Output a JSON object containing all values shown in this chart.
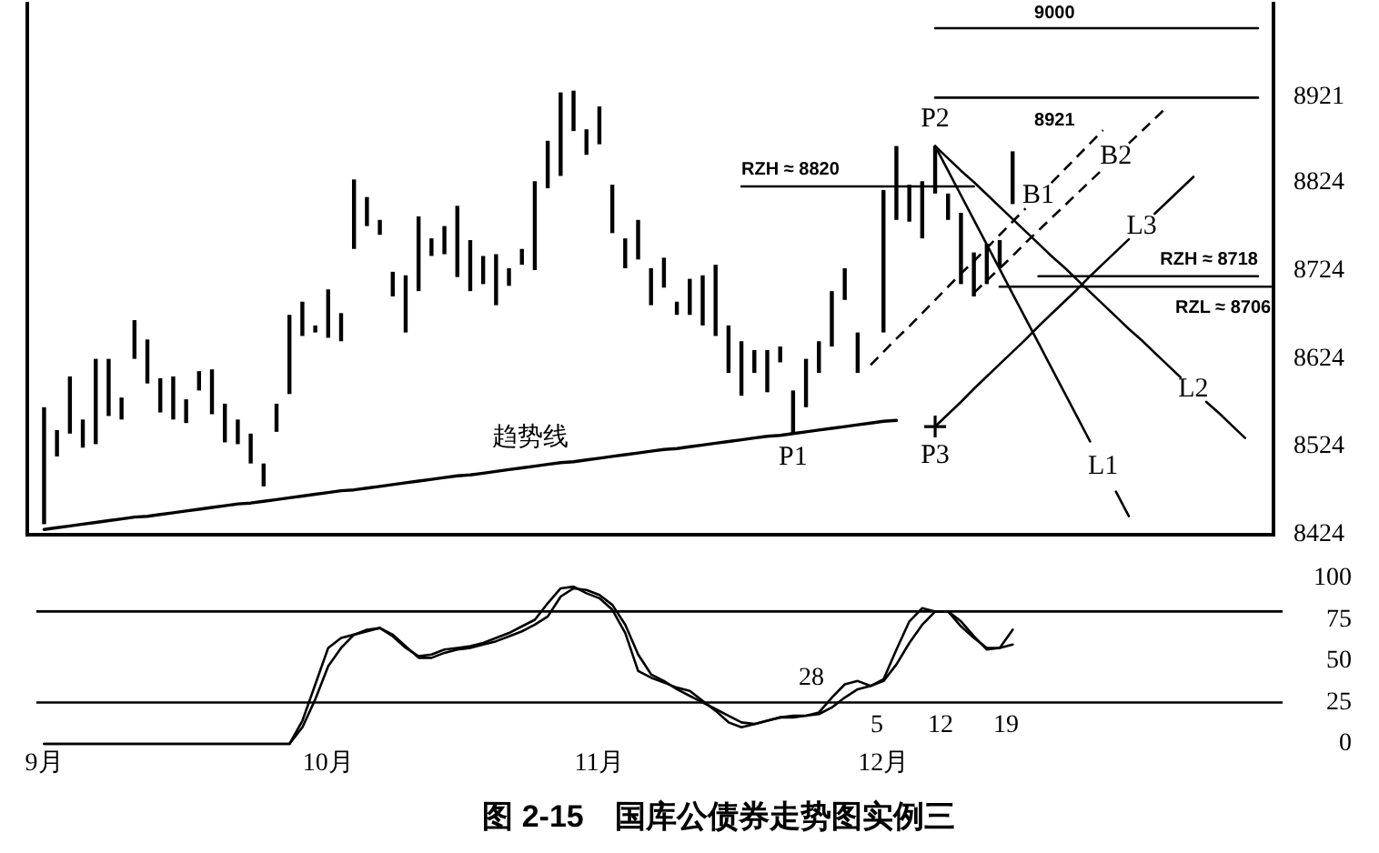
{
  "chart_data": [
    {
      "type": "bar",
      "tick_labels": "y",
      "ylim": [
        8424,
        9030
      ],
      "yticks": [
        8424,
        8524,
        8624,
        8724,
        8824,
        8921
      ],
      "categories": [
        null,
        null,
        null,
        null,
        null,
        null,
        null,
        null,
        null,
        null,
        null,
        null,
        null,
        null,
        null,
        null,
        null,
        null,
        null,
        null,
        null,
        null,
        null,
        null,
        null,
        null,
        null,
        null,
        null,
        null,
        null,
        null,
        null,
        null,
        null,
        null,
        null,
        null,
        null,
        null,
        null,
        null,
        null,
        null,
        null,
        null,
        null,
        null,
        null,
        null,
        null,
        null,
        null,
        null,
        null,
        null,
        null,
        null,
        null,
        null,
        null,
        null,
        null,
        null,
        null,
        null,
        null,
        null,
        null,
        null,
        null,
        null,
        null,
        null,
        null,
        null,
        null,
        null,
        null,
        null,
        null,
        null,
        null,
        null,
        null,
        null,
        null,
        null,
        null,
        null,
        null,
        null,
        null,
        null,
        null,
        null
      ],
      "series": [
        {
          "color": "#000000",
          "base": [
            8436,
            8513,
            8539,
            8523,
            8527,
            8559,
            8555,
            8624,
            8596,
            8563,
            8555,
            8551,
            8588,
            8561,
            8529,
            8527,
            8505,
            8479,
            8541,
            8584,
            8650,
            8654,
            8648,
            8644,
            8749,
            8775,
            8765,
            8695,
            8654,
            8701,
            8741,
            8743,
            8717,
            8701,
            8709,
            8685,
            8707,
            8731,
            8725,
            8818,
            8832,
            8883,
            8856,
            8868,
            8767,
            8727,
            8737,
            8685,
            8705,
            8674,
            8674,
            8662,
            8650,
            8608,
            8582,
            8608,
            8586,
            8620,
            8539,
            8569,
            8608,
            8638,
            8691,
            8608,
            null,
            8654,
            8782,
            8780,
            8761,
            8812,
            8782,
            8709,
            8695,
            8709,
            8729,
            8800,
            null,
            null,
            null,
            null,
            null,
            null,
            null,
            null,
            null,
            null,
            null,
            null,
            null,
            null,
            null,
            null,
            null,
            null,
            null,
            null
          ],
          "values": [
            133,
            30,
            65,
            32,
            97,
            65,
            25,
            44,
            50,
            39,
            49,
            27,
            22,
            51,
            44,
            28,
            34,
            26,
            32,
            90,
            39,
            8,
            55,
            32,
            79,
            33,
            17,
            28,
            65,
            85,
            20,
            32,
            81,
            58,
            32,
            58,
            20,
            18,
            101,
            54,
            95,
            46,
            29,
            43,
            55,
            34,
            45,
            42,
            34,
            15,
            41,
            57,
            81,
            54,
            62,
            26,
            48,
            18,
            49,
            55,
            36,
            63,
            36,
            46,
            null,
            162,
            84,
            42,
            65,
            54,
            30,
            81,
            50,
            46,
            30,
            60,
            null,
            null,
            null,
            null,
            null,
            null,
            null,
            null,
            null,
            null,
            null,
            null,
            null,
            null,
            null,
            null,
            null,
            null,
            null,
            null
          ]
        },
        {
          "type": "line",
          "name": "趋势线",
          "color": "#000000",
          "values": [
            8430,
            8432,
            8434,
            8436,
            8438,
            8440,
            8442,
            8444,
            8445,
            8447,
            8449,
            8451,
            8453,
            8455,
            8457,
            8459,
            8460,
            8462,
            8464,
            8466,
            8468,
            8470,
            8472,
            8474,
            8475,
            8477,
            8479,
            8481,
            8483,
            8485,
            8487,
            8489,
            8491,
            8492,
            8494,
            8496,
            8498,
            8500,
            8502,
            8504,
            8506,
            8507,
            8509,
            8511,
            8513,
            8515,
            8517,
            8519,
            8521,
            8522,
            8524,
            8526,
            8528,
            8530,
            8532,
            8534,
            8536,
            8537,
            8539,
            8541,
            8543,
            8545,
            8547,
            8549,
            8551,
            8553,
            8554,
            null,
            null,
            null,
            null,
            null,
            null,
            null,
            null,
            null,
            null,
            null,
            null,
            null,
            null,
            null,
            null,
            null,
            null,
            null,
            null,
            null,
            null,
            null,
            null,
            null,
            null,
            null,
            null,
            null
          ]
        },
        {
          "type": "line",
          "name": "9000",
          "color": "#000000",
          "values": [
            null,
            null,
            null,
            null,
            null,
            null,
            null,
            null,
            null,
            null,
            null,
            null,
            null,
            null,
            null,
            null,
            null,
            null,
            null,
            null,
            null,
            null,
            null,
            null,
            null,
            null,
            null,
            null,
            null,
            null,
            null,
            null,
            null,
            null,
            null,
            null,
            null,
            null,
            null,
            null,
            null,
            null,
            null,
            null,
            null,
            null,
            null,
            null,
            null,
            null,
            null,
            null,
            null,
            null,
            null,
            null,
            null,
            null,
            null,
            null,
            null,
            null,
            null,
            null,
            null,
            null,
            null,
            null,
            null,
            9000,
            9000,
            9000,
            9000,
            9000,
            9000,
            9000,
            9000,
            9000,
            9000,
            9000,
            9000,
            9000,
            9000,
            9000,
            9000,
            9000,
            9000,
            9000,
            9000,
            9000,
            9000,
            9000,
            9000,
            9000,
            9000,
            null
          ]
        },
        {
          "type": "line",
          "name": "8921",
          "color": "#000000",
          "values": [
            null,
            null,
            null,
            null,
            null,
            null,
            null,
            null,
            null,
            null,
            null,
            null,
            null,
            null,
            null,
            null,
            null,
            null,
            null,
            null,
            null,
            null,
            null,
            null,
            null,
            null,
            null,
            null,
            null,
            null,
            null,
            null,
            null,
            null,
            null,
            null,
            null,
            null,
            null,
            null,
            null,
            null,
            null,
            null,
            null,
            null,
            null,
            null,
            null,
            null,
            null,
            null,
            null,
            null,
            null,
            null,
            null,
            null,
            null,
            null,
            null,
            null,
            null,
            null,
            null,
            null,
            null,
            null,
            null,
            8921,
            8921,
            8921,
            8921,
            8921,
            8921,
            8921,
            8921,
            8921,
            8921,
            8921,
            8921,
            8921,
            8921,
            8921,
            8921,
            8921,
            8921,
            8921,
            8921,
            8921,
            8921,
            8921,
            8921,
            8921,
            8921,
            null
          ]
        },
        {
          "type": "line",
          "name": "RZH ≈ 8820",
          "color": "#000000",
          "values": [
            null,
            null,
            null,
            null,
            null,
            null,
            null,
            null,
            null,
            null,
            null,
            null,
            null,
            null,
            null,
            null,
            null,
            null,
            null,
            null,
            null,
            null,
            null,
            null,
            null,
            null,
            null,
            null,
            null,
            null,
            null,
            null,
            null,
            null,
            null,
            null,
            null,
            null,
            null,
            null,
            null,
            null,
            null,
            null,
            null,
            null,
            null,
            null,
            null,
            null,
            null,
            null,
            null,
            null,
            8820,
            8820,
            8820,
            8820,
            8820,
            8820,
            8820,
            8820,
            8820,
            8820,
            8820,
            8820,
            8820,
            8820,
            8820,
            8820,
            8820,
            8820,
            8820,
            null,
            null,
            null,
            null,
            null,
            null,
            null,
            null,
            null,
            null,
            null,
            null,
            null,
            null,
            null,
            null,
            null,
            null,
            null,
            null,
            null,
            null,
            null
          ]
        },
        {
          "type": "line",
          "name": "RZH ≈ 8718",
          "color": "#000000",
          "values": [
            null,
            null,
            null,
            null,
            null,
            null,
            null,
            null,
            null,
            null,
            null,
            null,
            null,
            null,
            null,
            null,
            null,
            null,
            null,
            null,
            null,
            null,
            null,
            null,
            null,
            null,
            null,
            null,
            null,
            null,
            null,
            null,
            null,
            null,
            null,
            null,
            null,
            null,
            null,
            null,
            null,
            null,
            null,
            null,
            null,
            null,
            null,
            null,
            null,
            null,
            null,
            null,
            null,
            null,
            null,
            null,
            null,
            null,
            null,
            null,
            null,
            null,
            null,
            null,
            null,
            null,
            null,
            null,
            null,
            null,
            null,
            null,
            null,
            null,
            null,
            null,
            null,
            8718,
            8718,
            8718,
            8718,
            8718,
            8718,
            8718,
            8718,
            8718,
            8718,
            8718,
            8718,
            8718,
            8718,
            8718,
            8718,
            8718,
            8718,
            null
          ]
        },
        {
          "type": "line",
          "name": "RZL ≈ 8706",
          "color": "#000000",
          "values": [
            null,
            null,
            null,
            null,
            null,
            null,
            null,
            null,
            null,
            null,
            null,
            null,
            null,
            null,
            null,
            null,
            null,
            null,
            null,
            null,
            null,
            null,
            null,
            null,
            null,
            null,
            null,
            null,
            null,
            null,
            null,
            null,
            null,
            null,
            null,
            null,
            null,
            null,
            null,
            null,
            null,
            null,
            null,
            null,
            null,
            null,
            null,
            null,
            null,
            null,
            null,
            null,
            null,
            null,
            null,
            null,
            null,
            null,
            null,
            null,
            null,
            null,
            null,
            null,
            null,
            null,
            null,
            null,
            null,
            null,
            null,
            null,
            null,
            null,
            8706,
            8706,
            8706,
            8706,
            8706,
            8706,
            8706,
            8706,
            8706,
            8706,
            8706,
            8706,
            8706,
            8706,
            8706,
            8706,
            8706,
            8706,
            8706,
            8706,
            8706,
            8706
          ]
        },
        {
          "type": "line",
          "name": "L1",
          "color": "#000000",
          "values": [
            null,
            null,
            null,
            null,
            null,
            null,
            null,
            null,
            null,
            null,
            null,
            null,
            null,
            null,
            null,
            null,
            null,
            null,
            null,
            null,
            null,
            null,
            null,
            null,
            null,
            null,
            null,
            null,
            null,
            null,
            null,
            null,
            null,
            null,
            null,
            null,
            null,
            null,
            null,
            null,
            null,
            null,
            null,
            null,
            null,
            null,
            null,
            null,
            null,
            null,
            null,
            null,
            null,
            null,
            null,
            null,
            null,
            null,
            null,
            null,
            null,
            null,
            null,
            null,
            null,
            null,
            null,
            null,
            null,
            8866,
            8838,
            8810,
            8782,
            8754,
            8726,
            8698,
            8670,
            8642,
            8614,
            8586,
            8558,
            8530,
            null,
            8473,
            8445,
            null,
            null,
            null,
            null,
            null,
            null,
            null,
            null,
            null,
            null,
            null
          ]
        },
        {
          "type": "line",
          "name": "L2",
          "color": "#000000",
          "values": [
            null,
            null,
            null,
            null,
            null,
            null,
            null,
            null,
            null,
            null,
            null,
            null,
            null,
            null,
            null,
            null,
            null,
            null,
            null,
            null,
            null,
            null,
            null,
            null,
            null,
            null,
            null,
            null,
            null,
            null,
            null,
            null,
            null,
            null,
            null,
            null,
            null,
            null,
            null,
            null,
            null,
            null,
            null,
            null,
            null,
            null,
            null,
            null,
            null,
            null,
            null,
            null,
            null,
            null,
            null,
            null,
            null,
            null,
            null,
            null,
            null,
            null,
            null,
            null,
            null,
            null,
            null,
            null,
            null,
            8866,
            8852,
            8838,
            8825,
            8811,
            8797,
            8783,
            8769,
            8755,
            8741,
            8728,
            8714,
            8700,
            8686,
            8672,
            8658,
            8645,
            8631,
            8617,
            8603,
            null,
            8575,
            8562,
            8548,
            8534,
            null,
            null
          ]
        },
        {
          "type": "line",
          "name": "L3",
          "color": "#000000",
          "values": [
            null,
            null,
            null,
            null,
            null,
            null,
            null,
            null,
            null,
            null,
            null,
            null,
            null,
            null,
            null,
            null,
            null,
            null,
            null,
            null,
            null,
            null,
            null,
            null,
            null,
            null,
            null,
            null,
            null,
            null,
            null,
            null,
            null,
            null,
            null,
            null,
            null,
            null,
            null,
            null,
            null,
            null,
            null,
            null,
            null,
            null,
            null,
            null,
            null,
            null,
            null,
            null,
            null,
            null,
            null,
            null,
            null,
            null,
            null,
            null,
            null,
            null,
            null,
            null,
            null,
            null,
            null,
            null,
            null,
            8547,
            8561,
            8575,
            8590,
            8604,
            8618,
            8632,
            8646,
            8661,
            8675,
            8689,
            8703,
            8718,
            8732,
            8746,
            8760,
            null,
            8789,
            8803,
            8817,
            8831,
            null,
            null,
            null,
            null,
            null,
            null
          ]
        },
        {
          "type": "line",
          "name": "B1",
          "color": "#000000",
          "line_style": "dashed",
          "values": [
            null,
            null,
            null,
            null,
            null,
            null,
            null,
            null,
            null,
            null,
            null,
            null,
            null,
            null,
            null,
            null,
            null,
            null,
            null,
            null,
            null,
            null,
            null,
            null,
            null,
            null,
            null,
            null,
            null,
            null,
            null,
            null,
            null,
            null,
            null,
            null,
            null,
            null,
            null,
            null,
            null,
            null,
            null,
            null,
            null,
            null,
            null,
            null,
            null,
            null,
            null,
            null,
            null,
            null,
            null,
            null,
            null,
            null,
            null,
            null,
            null,
            null,
            null,
            null,
            8617,
            8632,
            8647,
            8661,
            8676,
            8691,
            8706,
            8721,
            8735,
            8750,
            8765,
            8780,
            8795,
            null,
            8824,
            8839,
            8854,
            8869,
            8884,
            null,
            null,
            null,
            null,
            null,
            null,
            null,
            null,
            null,
            null,
            null,
            null,
            null
          ]
        },
        {
          "type": "line",
          "name": "B2",
          "color": "#000000",
          "line_style": "dashed",
          "values": [
            null,
            null,
            null,
            null,
            null,
            null,
            null,
            null,
            null,
            null,
            null,
            null,
            null,
            null,
            null,
            null,
            null,
            null,
            null,
            null,
            null,
            null,
            null,
            null,
            null,
            null,
            null,
            null,
            null,
            null,
            null,
            null,
            null,
            null,
            null,
            null,
            null,
            null,
            null,
            null,
            null,
            null,
            null,
            null,
            null,
            null,
            null,
            null,
            null,
            null,
            null,
            null,
            null,
            null,
            null,
            null,
            null,
            null,
            null,
            null,
            null,
            null,
            null,
            null,
            null,
            null,
            null,
            null,
            null,
            null,
            null,
            null,
            8699,
            8713,
            8727,
            8741,
            8756,
            8770,
            8784,
            8798,
            8812,
            8826,
            8840,
            null,
            8869,
            8883,
            8897,
            8911,
            null,
            null,
            null,
            null,
            null,
            null,
            null,
            null
          ]
        },
        {
          "type": "scatter",
          "name": "P3",
          "color": "#000000",
          "marker": "cross",
          "values": [
            null,
            null,
            null,
            null,
            null,
            null,
            null,
            null,
            null,
            null,
            null,
            null,
            null,
            null,
            null,
            null,
            null,
            null,
            null,
            null,
            null,
            null,
            null,
            null,
            null,
            null,
            null,
            null,
            null,
            null,
            null,
            null,
            null,
            null,
            null,
            null,
            null,
            null,
            null,
            null,
            null,
            null,
            null,
            null,
            null,
            null,
            null,
            null,
            null,
            null,
            null,
            null,
            null,
            null,
            null,
            null,
            null,
            null,
            null,
            null,
            null,
            null,
            null,
            null,
            null,
            null,
            null,
            null,
            null,
            8547,
            null,
            null,
            null,
            null,
            null,
            null,
            null,
            null,
            null,
            null,
            null,
            null,
            null,
            null,
            null,
            null,
            null,
            null,
            null,
            null,
            null,
            null,
            null,
            null,
            null,
            null
          ]
        }
      ],
      "annotations": [
        {
          "text": "P1",
          "y": 8539
        },
        {
          "text": "P2",
          "y": 8866
        }
      ]
    },
    {
      "type": "line",
      "ylim": [
        0,
        100
      ],
      "yticks": [
        0,
        25,
        50,
        75,
        100
      ],
      "categories": [
        "9月",
        null,
        null,
        null,
        null,
        null,
        null,
        null,
        null,
        null,
        null,
        null,
        null,
        null,
        null,
        null,
        null,
        null,
        null,
        null,
        null,
        null,
        "10月",
        null,
        null,
        null,
        null,
        null,
        null,
        null,
        null,
        null,
        null,
        null,
        null,
        null,
        null,
        null,
        null,
        null,
        null,
        null,
        null,
        "11月",
        null,
        null,
        null,
        null,
        null,
        null,
        null,
        null,
        null,
        null,
        null,
        null,
        null,
        null,
        null,
        null,
        null,
        null,
        null,
        null,
        null,
        "12月",
        null,
        null,
        null,
        null,
        null,
        null,
        null,
        null,
        null,
        null,
        null,
        null,
        null,
        null,
        null,
        null,
        null,
        null,
        null,
        null,
        null,
        null,
        null,
        null,
        null,
        null,
        null,
        null,
        null,
        null
      ],
      "ref_lines": [
        {
          "axis": "y",
          "value": 80
        },
        {
          "axis": "y",
          "value": 25
        }
      ],
      "series": [
        {
          "color": "#000000",
          "values": [
            0,
            0,
            0,
            0,
            0,
            0,
            0,
            0,
            0,
            0,
            0,
            0,
            0,
            0,
            0,
            0,
            0,
            0,
            0,
            0,
            14,
            36,
            58,
            64,
            66,
            69,
            70,
            65,
            58,
            53,
            54,
            57,
            58,
            59,
            61,
            64,
            67,
            71,
            75,
            85,
            94,
            95,
            91,
            88,
            81,
            67,
            44,
            40,
            37,
            34,
            32,
            26,
            20,
            13,
            10,
            12,
            14,
            16,
            16,
            17,
            19,
            28,
            36,
            38,
            35,
            39,
            57,
            74,
            82,
            80,
            80,
            74,
            65,
            57,
            58,
            69,
            null,
            null,
            null,
            null,
            null,
            null,
            null,
            null,
            null,
            null,
            null,
            null,
            null,
            null,
            null,
            null,
            null,
            null,
            null,
            null
          ]
        },
        {
          "color": "#000000",
          "values": [
            0,
            0,
            0,
            0,
            0,
            0,
            0,
            0,
            0,
            0,
            0,
            0,
            0,
            0,
            0,
            0,
            0,
            0,
            0,
            0,
            10,
            27,
            47,
            58,
            66,
            68,
            70,
            66,
            59,
            52,
            52,
            55,
            57,
            58,
            60,
            62,
            65,
            68,
            72,
            77,
            89,
            94,
            93,
            90,
            84,
            72,
            54,
            42,
            38,
            33,
            29,
            25,
            21,
            17,
            13,
            12,
            14,
            16,
            17,
            17,
            18,
            22,
            28,
            33,
            35,
            38,
            48,
            61,
            72,
            80,
            80,
            71,
            64,
            58,
            58,
            60,
            null,
            null,
            null,
            null,
            null,
            null,
            null,
            null,
            null,
            null,
            null,
            null,
            null,
            null,
            null,
            null,
            null,
            null,
            null,
            null
          ]
        }
      ],
      "annotations": [
        "28",
        "5",
        "12",
        "19",
        "图 2-15　国库公债券走势图实例三"
      ]
    }
  ]
}
